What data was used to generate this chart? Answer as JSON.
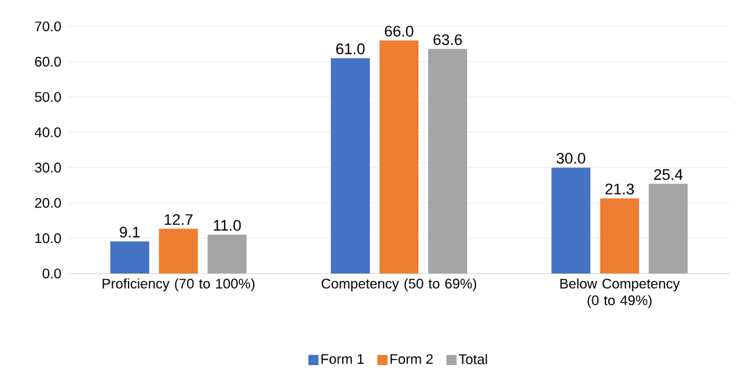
{
  "chart_data": {
    "type": "bar",
    "categories": [
      "Proficiency (70 to 100%)",
      "Competency (50 to 69%)",
      "Below Competency (0 to 49%)"
    ],
    "series": [
      {
        "name": "Form 1",
        "color": "#4472c4",
        "values": [
          9.1,
          61.0,
          30.0
        ],
        "value_labels": [
          "9.1",
          "61.0",
          "30.0"
        ]
      },
      {
        "name": "Form 2",
        "color": "#ed7d31",
        "values": [
          12.7,
          66.0,
          21.3
        ],
        "value_labels": [
          "12.7",
          "66.0",
          "21.3"
        ]
      },
      {
        "name": "Total",
        "color": "#a5a5a5",
        "values": [
          11.0,
          63.6,
          25.4
        ],
        "value_labels": [
          "11.0",
          "63.6",
          "25.4"
        ]
      }
    ],
    "ylim": [
      0,
      70
    ],
    "yticks": [
      {
        "value": 0,
        "label": "0.0"
      },
      {
        "value": 10,
        "label": "10.0"
      },
      {
        "value": 20,
        "label": "20.0"
      },
      {
        "value": 30,
        "label": "30.0"
      },
      {
        "value": 40,
        "label": "40.0"
      },
      {
        "value": 50,
        "label": "50.0"
      },
      {
        "value": 60,
        "label": "60.0"
      },
      {
        "value": 70,
        "label": "70.0"
      }
    ],
    "grid": "y",
    "legend": "bottom"
  }
}
